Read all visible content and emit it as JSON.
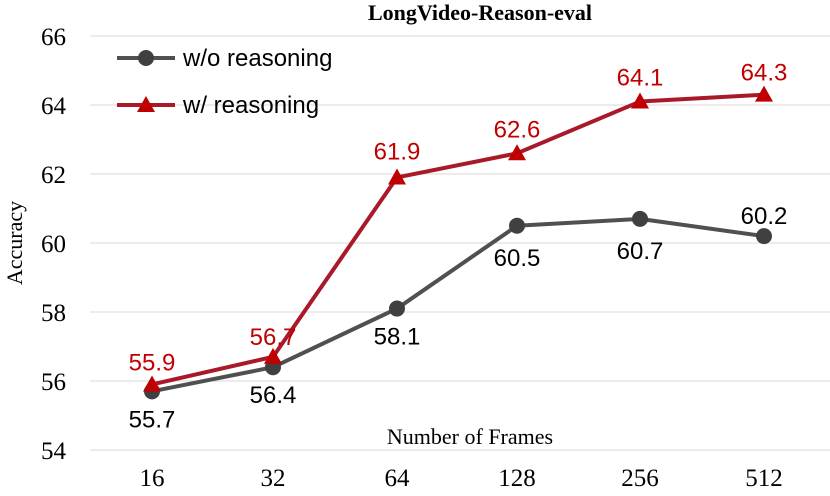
{
  "chart_data": {
    "type": "line",
    "title": "LongVideo-Reason-eval",
    "xlabel": "Number of Frames",
    "ylabel": "Accuracy",
    "categories": [
      "16",
      "32",
      "64",
      "128",
      "256",
      "512"
    ],
    "ylim": [
      54,
      66
    ],
    "yticks": [
      54,
      56,
      58,
      60,
      62,
      64,
      66
    ],
    "grid": true,
    "legend_position": "top-left",
    "series": [
      {
        "name": "w/o reasoning",
        "values": [
          55.7,
          56.4,
          58.1,
          60.5,
          60.7,
          60.2
        ],
        "labels": [
          "55.7",
          "56.4",
          "58.1",
          "60.5",
          "60.7",
          "60.2"
        ],
        "color": "#505050",
        "label_color": "#000000",
        "marker": "circle"
      },
      {
        "name": "w/ reasoning",
        "values": [
          55.9,
          56.7,
          61.9,
          62.6,
          64.1,
          64.3
        ],
        "labels": [
          "55.9",
          "56.7",
          "61.9",
          "62.6",
          "64.1",
          "64.3"
        ],
        "color": "#a8192a",
        "label_color": "#c00000",
        "marker": "triangle"
      }
    ]
  }
}
